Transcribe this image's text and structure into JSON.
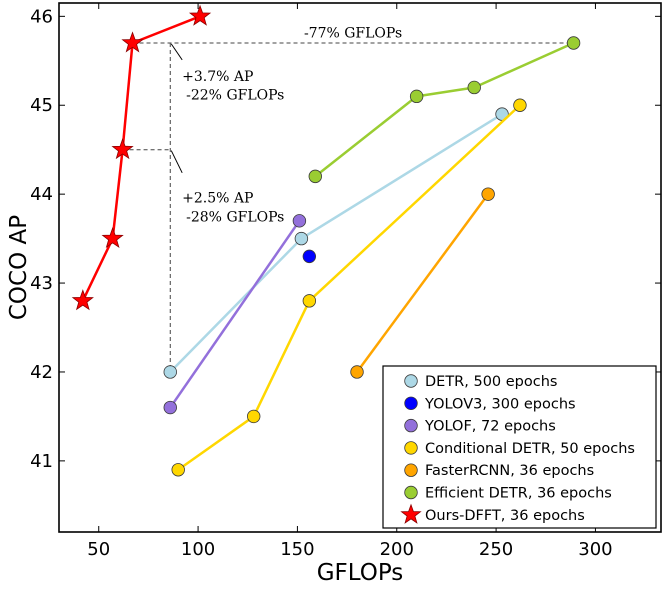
{
  "chart_data": {
    "type": "line",
    "xlabel": "GFLOPs",
    "ylabel": "COCO AP",
    "xlim": [
      30,
      333
    ],
    "ylim": [
      40.2,
      46.15
    ],
    "xticks": [
      50,
      100,
      150,
      200,
      250,
      300
    ],
    "yticks": [
      41,
      42,
      43,
      44,
      45,
      46
    ],
    "grid": false,
    "legend_position": "bottom-right",
    "series": [
      {
        "name": "DETR, 500 epochs",
        "color": "#add8e6",
        "marker": "circle",
        "x": [
          86,
          152,
          253
        ],
        "y": [
          42.0,
          43.5,
          44.9
        ]
      },
      {
        "name": "YOLOV3, 300 epochs",
        "color": "#0000ff",
        "marker": "circle",
        "x": [
          156
        ],
        "y": [
          43.3
        ]
      },
      {
        "name": "YOLOF, 72 epochs",
        "color": "#9370db",
        "marker": "circle",
        "x": [
          86,
          151
        ],
        "y": [
          41.6,
          43.7
        ]
      },
      {
        "name": "Conditional DETR, 50 epochs",
        "color": "#ffd700",
        "marker": "circle",
        "x": [
          90,
          128,
          156,
          262
        ],
        "y": [
          40.9,
          41.5,
          42.8,
          45.0
        ]
      },
      {
        "name": "FasterRCNN, 36 epochs",
        "color": "#ffa500",
        "marker": "circle",
        "x": [
          180,
          246
        ],
        "y": [
          42.0,
          44.0
        ]
      },
      {
        "name": "Efficient DETR, 36 epochs",
        "color": "#9acd32",
        "marker": "circle",
        "x": [
          159,
          210,
          239,
          289
        ],
        "y": [
          44.2,
          45.1,
          45.2,
          45.7
        ]
      },
      {
        "name": "Ours-DFFT, 36 epochs",
        "color": "#ff0000",
        "marker": "star",
        "x": [
          42,
          57,
          62,
          67,
          101
        ],
        "y": [
          42.8,
          43.5,
          44.5,
          45.7,
          46.0
        ]
      }
    ],
    "reference_lines": [
      {
        "from": [
          67,
          45.7
        ],
        "to": [
          289,
          45.7
        ]
      },
      {
        "from": [
          62,
          44.5
        ],
        "to": [
          86,
          44.5
        ]
      },
      {
        "from": [
          86,
          45.7
        ],
        "to": [
          86,
          42.0
        ]
      }
    ],
    "annotations": [
      {
        "text": "-77% GFLOPs",
        "x": 178,
        "y": 45.82,
        "anchor": "center"
      },
      {
        "text": "+3.7% AP",
        "x": 92,
        "y": 45.33,
        "anchor": "start"
      },
      {
        "text": "-22% GFLOPs",
        "x": 94,
        "y": 45.12,
        "anchor": "start"
      },
      {
        "text": "+2.5% AP",
        "x": 92,
        "y": 43.96,
        "anchor": "start"
      },
      {
        "text": "-28% GFLOPs",
        "x": 94,
        "y": 43.75,
        "anchor": "start"
      }
    ],
    "leader_lines": [
      {
        "from": [
          86.5,
          45.69
        ],
        "to": [
          92,
          45.51
        ]
      },
      {
        "from": [
          86.5,
          44.49
        ],
        "to": [
          92,
          44.24
        ]
      }
    ]
  }
}
